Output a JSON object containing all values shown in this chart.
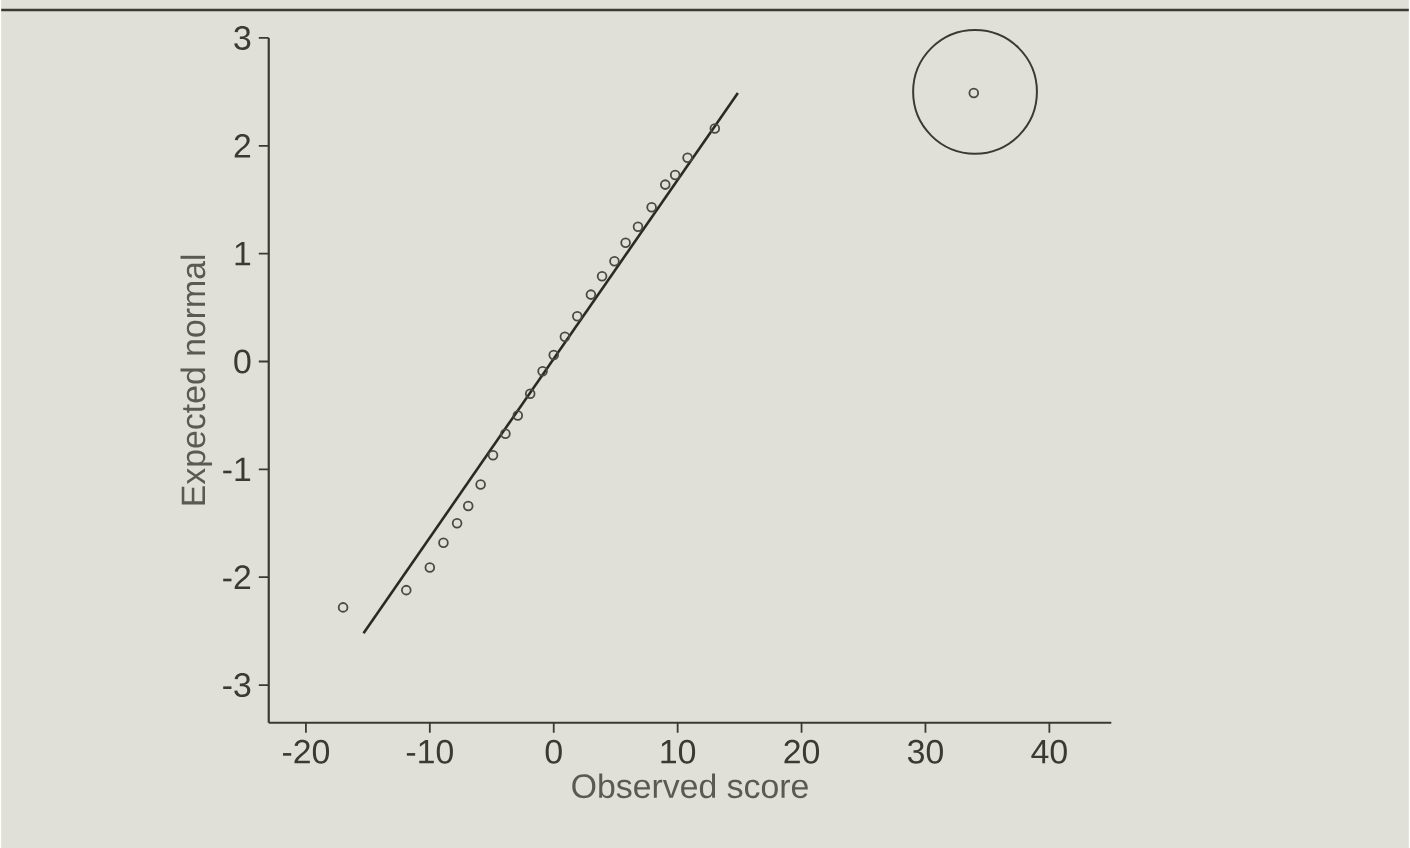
{
  "chart_data": {
    "type": "scatter",
    "xlabel": "Observed score",
    "ylabel": "Expected normal",
    "xlim": [
      -23,
      45
    ],
    "ylim": [
      -3.35,
      3
    ],
    "xticks": [
      -20,
      -10,
      0,
      10,
      20,
      30,
      40
    ],
    "yticks": [
      -3,
      -2,
      -1,
      0,
      1,
      2,
      3
    ],
    "grid": false,
    "marker": "circle",
    "series": [
      {
        "color": "#4a4a40",
        "x": [
          -17,
          -11.9,
          -10,
          -8.9,
          -7.8,
          -6.9,
          -5.9,
          -4.9,
          -3.9,
          -2.9,
          -1.9,
          -0.9,
          0,
          0.9,
          1.9,
          3,
          3.9,
          4.9,
          5.8,
          6.8,
          7.9,
          9,
          9.8,
          10.8,
          13,
          33.9
        ],
        "values": [
          -2.28,
          -2.12,
          -1.91,
          -1.68,
          -1.5,
          -1.34,
          -1.14,
          -0.87,
          -0.67,
          -0.5,
          -0.3,
          -0.09,
          0.06,
          0.23,
          0.42,
          0.62,
          0.79,
          0.93,
          1.1,
          1.25,
          1.43,
          1.64,
          1.73,
          1.89,
          2.16,
          2.49
        ]
      },
      {
        "type": "line",
        "color": "#2a2a24",
        "line_style": "solid",
        "marker": "none",
        "x": [
          -15.35,
          14.86
        ],
        "values": [
          -2.52,
          2.49
        ]
      }
    ]
  }
}
